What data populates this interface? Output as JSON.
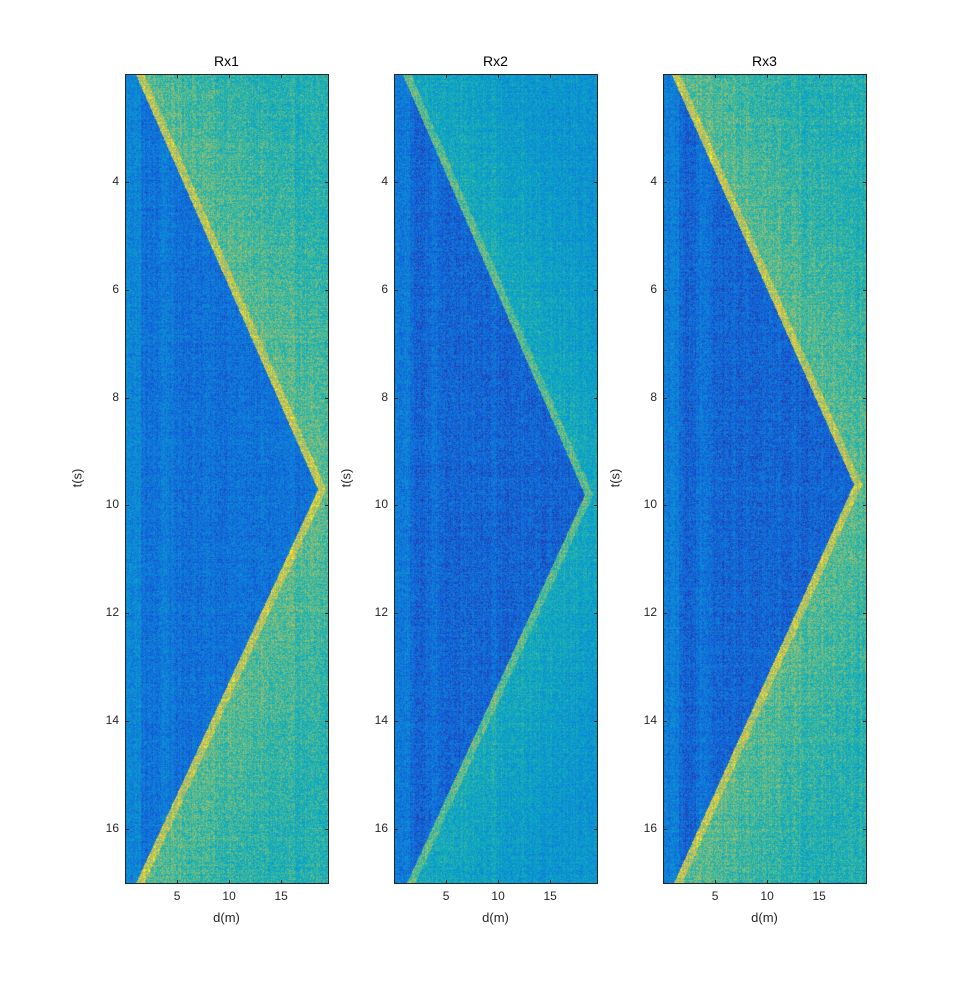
{
  "figure": {
    "colormap": "parula",
    "colors": {
      "low": "#3e7ae0",
      "mid_low": "#1fa8d8",
      "mid": "#2cb8a0",
      "mid_high": "#8cc63f",
      "high": "#e8b82a",
      "peak": "#f7d21e",
      "axis": "#262626"
    }
  },
  "chart_data": [
    {
      "type": "heatmap",
      "title": "Rx1",
      "xlabel": "d(m)",
      "ylabel": "t(s)",
      "xlim": [
        0,
        19.5
      ],
      "ylim": [
        2,
        17
      ],
      "y_reversed": true,
      "xticks": [
        5,
        10,
        15
      ],
      "yticks": [
        4,
        6,
        8,
        10,
        12,
        14,
        16
      ],
      "description": "V-shaped boundary: high-intensity (yellow) region right of a line from d≈1 at t≈2 to d≈18.5 at t≈9.7, then back to d≈1 at t≈17; low-intensity (blue) region inside the V",
      "vertex": {
        "d": 18.5,
        "t": 9.7
      },
      "start": {
        "d": 1.0,
        "t": 2.0
      },
      "end": {
        "d": 1.0,
        "t": 17.0
      },
      "inside_level": 0.25,
      "outside_level": 0.7
    },
    {
      "type": "heatmap",
      "title": "Rx2",
      "xlabel": "d(m)",
      "ylabel": "t(s)",
      "xlim": [
        0,
        19.5
      ],
      "ylim": [
        2,
        17
      ],
      "y_reversed": true,
      "xticks": [
        5,
        10,
        15
      ],
      "yticks": [
        4,
        6,
        8,
        10,
        12,
        14,
        16
      ],
      "description": "Same V pattern with weaker contrast; vertex near d≈18.3, t≈9.8",
      "vertex": {
        "d": 18.3,
        "t": 9.8
      },
      "start": {
        "d": 0.8,
        "t": 2.0
      },
      "end": {
        "d": 1.2,
        "t": 17.0
      },
      "inside_level": 0.2,
      "outside_level": 0.55
    },
    {
      "type": "heatmap",
      "title": "Rx3",
      "xlabel": "d(m)",
      "ylabel": "t(s)",
      "xlim": [
        0,
        19.5
      ],
      "ylim": [
        2,
        17
      ],
      "y_reversed": true,
      "xticks": [
        5,
        10,
        15
      ],
      "yticks": [
        4,
        6,
        8,
        10,
        12,
        14,
        16
      ],
      "description": "Same V pattern, strong contrast; vertex near d≈18.3, t≈9.6",
      "vertex": {
        "d": 18.3,
        "t": 9.6
      },
      "start": {
        "d": 0.8,
        "t": 2.0
      },
      "end": {
        "d": 1.0,
        "t": 17.0
      },
      "inside_level": 0.2,
      "outside_level": 0.7
    }
  ]
}
